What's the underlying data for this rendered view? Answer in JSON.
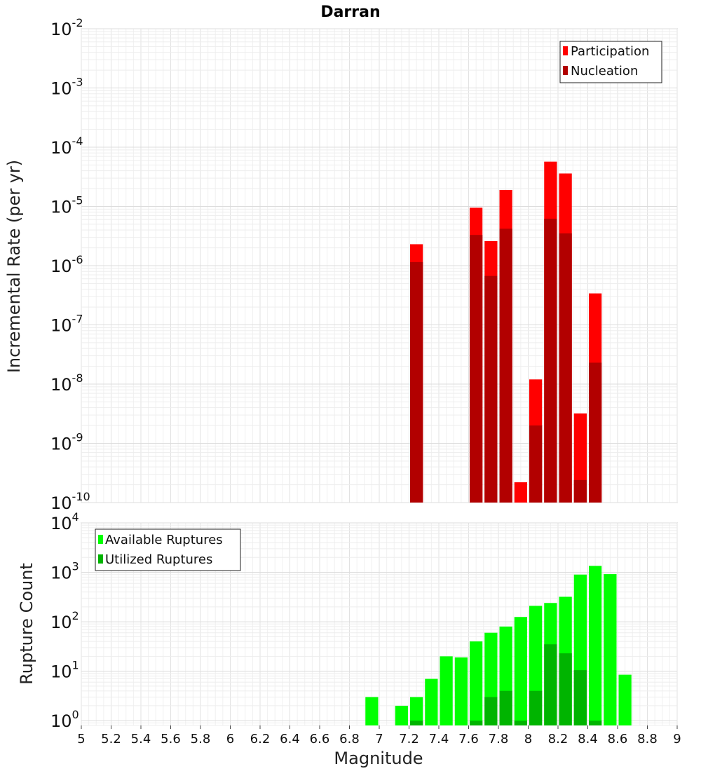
{
  "chart_data": [
    {
      "type": "bar",
      "title": "Darran",
      "ylabel": "Incremental Rate (per yr)",
      "y_scale": "log",
      "ylim": [
        1e-10,
        0.01
      ],
      "y_ticks": [
        {
          "exp": "-10",
          "value": 1e-10
        },
        {
          "exp": "-9",
          "value": 1e-09
        },
        {
          "exp": "-8",
          "value": 1e-08
        },
        {
          "exp": "-7",
          "value": 1e-07
        },
        {
          "exp": "-6",
          "value": 1e-06
        },
        {
          "exp": "-5",
          "value": 1e-05
        },
        {
          "exp": "-4",
          "value": 0.0001
        },
        {
          "exp": "-3",
          "value": 0.001
        },
        {
          "exp": "-2",
          "value": 0.01
        }
      ],
      "y_tick_base": "10",
      "xlim": [
        5,
        9
      ],
      "bar_width": 0.1,
      "legend_position": "top-right",
      "grid": true,
      "series": [
        {
          "name": "Participation",
          "color": "#ff0000",
          "x": [
            7.25,
            7.65,
            7.75,
            7.85,
            7.95,
            8.05,
            8.15,
            8.25,
            8.35,
            8.45
          ],
          "values": [
            2.3e-06,
            9.5e-06,
            2.6e-06,
            1.9e-05,
            2.2e-10,
            1.2e-08,
            5.7e-05,
            3.6e-05,
            3.2e-09,
            3.4e-07
          ]
        },
        {
          "name": "Nucleation",
          "color": "#b20000",
          "x": [
            7.25,
            7.65,
            7.75,
            7.85,
            8.05,
            8.15,
            8.25,
            8.35,
            8.45
          ],
          "values": [
            1.15e-06,
            3.3e-06,
            6.7e-07,
            4.2e-06,
            2e-09,
            6.2e-06,
            3.5e-06,
            2.4e-10,
            2.3e-08
          ]
        }
      ]
    },
    {
      "type": "bar",
      "title": "",
      "xlabel": "Magnitude",
      "ylabel": "Rupture Count",
      "y_scale": "log",
      "ylim": [
        0.8,
        10000
      ],
      "y_ticks": [
        {
          "exp": "0",
          "value": 1
        },
        {
          "exp": "1",
          "value": 10
        },
        {
          "exp": "2",
          "value": 100
        },
        {
          "exp": "3",
          "value": 1000
        },
        {
          "exp": "4",
          "value": 10000
        }
      ],
      "y_tick_base": "10",
      "xlim": [
        5,
        9
      ],
      "x_ticks": [
        "5",
        "5.2",
        "5.4",
        "5.6",
        "5.8",
        "6",
        "6.2",
        "6.4",
        "6.6",
        "6.8",
        "7",
        "7.2",
        "7.4",
        "7.6",
        "7.8",
        "8",
        "8.2",
        "8.4",
        "8.6",
        "8.8",
        "9"
      ],
      "bar_width": 0.1,
      "legend_position": "top-left",
      "grid": true,
      "series": [
        {
          "name": "Available Ruptures",
          "color": "#00ff00",
          "x": [
            6.95,
            7.15,
            7.25,
            7.35,
            7.45,
            7.55,
            7.65,
            7.75,
            7.85,
            7.95,
            8.05,
            8.15,
            8.25,
            8.35,
            8.45,
            8.55,
            8.65
          ],
          "values": [
            3,
            2,
            3,
            7,
            20,
            19,
            40,
            60,
            80,
            125,
            210,
            240,
            320,
            900,
            1350,
            920,
            8.5
          ]
        },
        {
          "name": "Utilized Ruptures",
          "color": "#00b400",
          "x": [
            7.25,
            7.65,
            7.75,
            7.85,
            7.95,
            8.05,
            8.15,
            8.25,
            8.35,
            8.45
          ],
          "values": [
            1,
            1,
            3,
            4,
            1,
            4,
            35,
            23,
            10.5,
            1
          ]
        }
      ]
    }
  ]
}
